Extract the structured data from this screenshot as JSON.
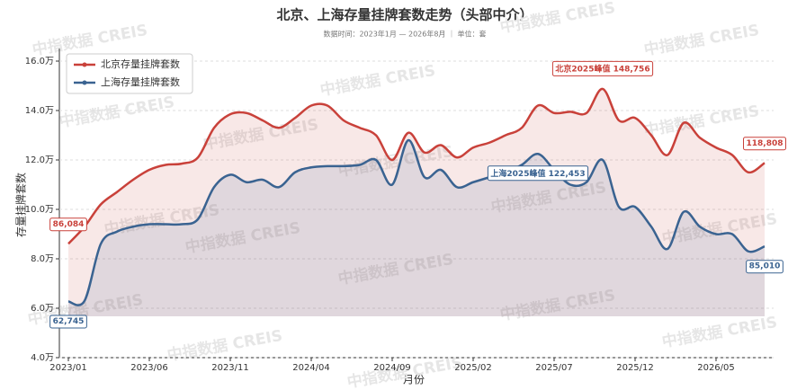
{
  "chart_data": {
    "type": "line",
    "title": "北京、上海存量挂牌套数走势（头部中介）",
    "subtitle": "数据时间：2023年1月 — 2026年8月 ｜ 单位：套",
    "x_label": "月份",
    "y_label": "存量挂牌套数",
    "watermark": "中指数据 CREIS",
    "categories": [
      "2023/01",
      null,
      null,
      null,
      null,
      "2023/06",
      null,
      null,
      null,
      null,
      "2023/11",
      null,
      null,
      null,
      null,
      "2024/04",
      null,
      null,
      null,
      null,
      "2024/09",
      null,
      null,
      null,
      null,
      "2025/02",
      null,
      null,
      null,
      null,
      "2025/07",
      null,
      null,
      null,
      null,
      "2025/12",
      null,
      null,
      null,
      null,
      "2026/05",
      null,
      null,
      null
    ],
    "series": [
      {
        "name": "北京存量挂牌套数",
        "color": "#c9413a",
        "values": [
          86084,
          93000,
          102000,
          107000,
          112000,
          116000,
          118000,
          118500,
          121000,
          133000,
          138500,
          139000,
          136000,
          133000,
          137000,
          142000,
          142000,
          136000,
          133000,
          130000,
          120000,
          131000,
          123000,
          126000,
          121000,
          125000,
          127000,
          130000,
          133000,
          142000,
          139000,
          139500,
          139000,
          148756,
          136000,
          137000,
          130000,
          122000,
          135000,
          129000,
          125000,
          122000,
          115000,
          118808
        ],
        "value_labels": [
          "86,084",
          null,
          null,
          null,
          null,
          null,
          null,
          null,
          null,
          null,
          null,
          null,
          null,
          null,
          null,
          null,
          null,
          null,
          null,
          null,
          null,
          null,
          null,
          null,
          null,
          null,
          null,
          null,
          null,
          null,
          null,
          null,
          null,
          "北京2025峰值 148,756",
          null,
          null,
          null,
          null,
          null,
          null,
          null,
          null,
          null,
          "118,808"
        ]
      },
      {
        "name": "上海存量挂牌套数",
        "color": "#3a6391",
        "values": [
          62745,
          63000,
          86000,
          91000,
          93000,
          94000,
          94000,
          94000,
          96000,
          109000,
          114000,
          111000,
          112000,
          109000,
          115000,
          117000,
          117500,
          117500,
          118000,
          120000,
          110000,
          128000,
          113000,
          116000,
          109000,
          111000,
          113000,
          115000,
          118000,
          122453,
          116000,
          110000,
          111000,
          120000,
          101000,
          101000,
          93000,
          84000,
          99000,
          93000,
          90000,
          90000,
          83000,
          85010
        ],
        "value_labels": [
          "62,745",
          null,
          null,
          null,
          null,
          null,
          null,
          null,
          null,
          null,
          null,
          null,
          null,
          null,
          null,
          null,
          null,
          null,
          null,
          null,
          null,
          null,
          null,
          null,
          null,
          null,
          null,
          null,
          null,
          "上海2025峰值 122,453",
          null,
          null,
          null,
          null,
          null,
          null,
          null,
          null,
          null,
          null,
          null,
          null,
          null,
          "85,010"
        ]
      }
    ],
    "ylim": [
      40000,
      160000
    ],
    "yticks": [
      {
        "value": 40000,
        "label": "4.0万"
      },
      {
        "value": 60000,
        "label": "6.0万"
      },
      {
        "value": 80000,
        "label": "8.0万"
      },
      {
        "value": 100000,
        "label": "10.0万"
      },
      {
        "value": 120000,
        "label": "12.0万"
      },
      {
        "value": 140000,
        "label": "14.0万"
      },
      {
        "value": 160000,
        "label": "16.0万"
      }
    ],
    "grid": true,
    "legend": "upper left"
  }
}
